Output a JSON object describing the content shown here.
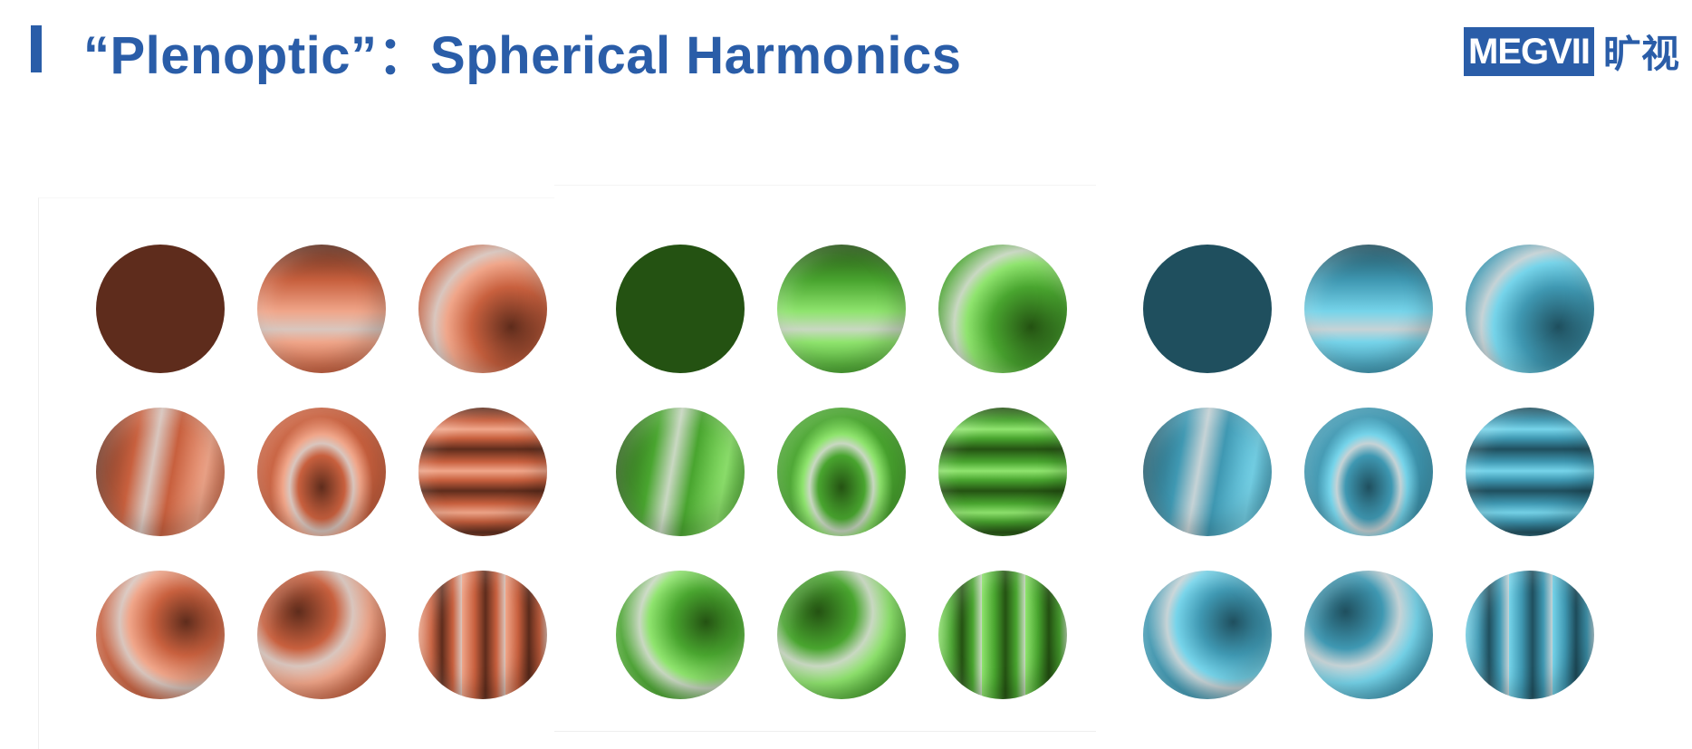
{
  "slide": {
    "title": "“Plenoptic”：Spherical Harmonics"
  },
  "logo": {
    "brand": "MEGVII",
    "brand_cn": "旷视"
  },
  "colors": {
    "accent": "#2a5da8",
    "brown": {
      "dark": "#5e2c1c",
      "mid": "#c8603e",
      "light": "#f0a68a",
      "pale": "#d9c6be"
    },
    "green": {
      "dark": "#245212",
      "mid": "#49a52f",
      "light": "#8fe46e",
      "pale": "#c9d8c2"
    },
    "teal": {
      "dark": "#1f4f5e",
      "mid": "#3f98b2",
      "light": "#76d4ea",
      "pale": "#c6d3d6"
    }
  }
}
